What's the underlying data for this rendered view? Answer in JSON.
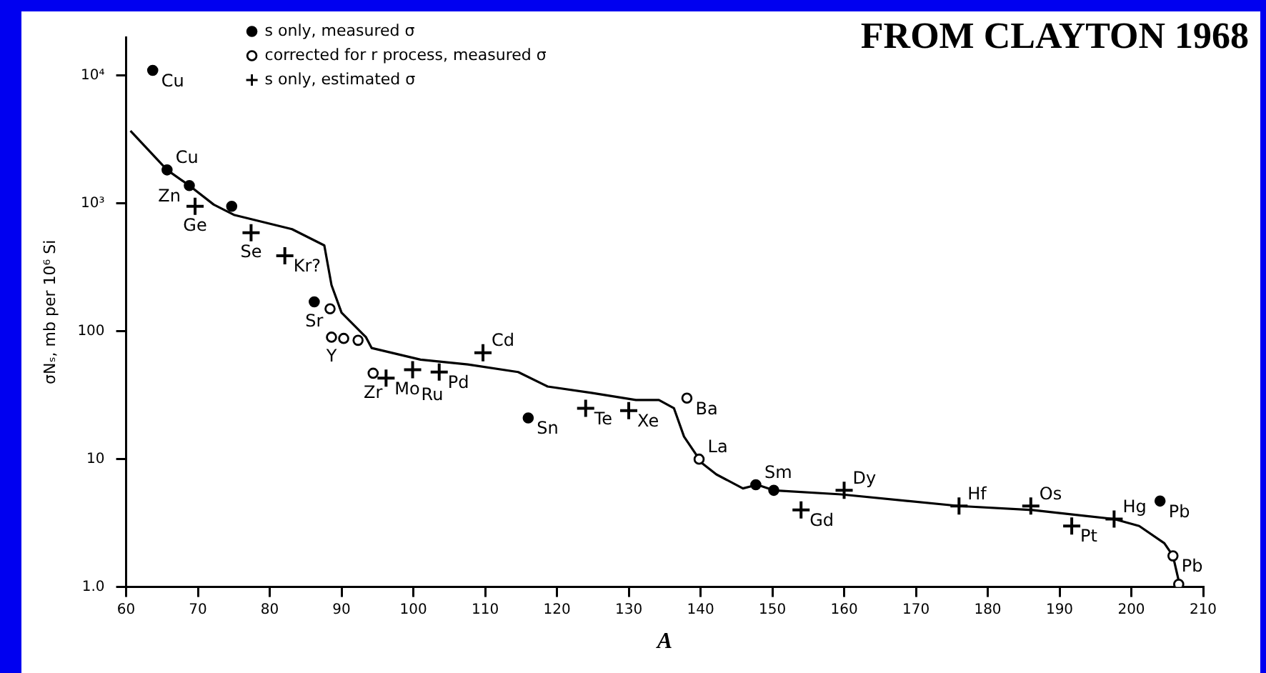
{
  "chart_data": {
    "type": "scatter",
    "title": "FROM CLAYTON 1968",
    "xlabel": "A",
    "ylabel": "σNₛ, mb per 10⁶ Si",
    "log": "y",
    "xlim": [
      60,
      210
    ],
    "ylim": [
      1,
      20000
    ],
    "xticks": [
      60,
      70,
      80,
      90,
      100,
      110,
      120,
      130,
      140,
      150,
      160,
      170,
      180,
      190,
      200,
      210
    ],
    "yticks": [
      {
        "value": 1,
        "label": "1.0"
      },
      10,
      100,
      {
        "value": 1000,
        "label": "10³"
      },
      {
        "value": 10000,
        "label": "10⁴"
      }
    ],
    "grid": false,
    "legend": "top left",
    "series": [
      {
        "name": "s only, measured σ",
        "marker": "circle",
        "color": "#000000",
        "x": [
          63.7,
          65.7,
          68.8,
          74.7,
          86.2,
          116,
          147.7,
          150.2,
          204
        ],
        "values": [
          11000,
          1830,
          1380,
          950,
          170,
          21,
          6.3,
          5.7,
          4.7
        ]
      },
      {
        "name": "corrected for r process, measured σ",
        "marker": "circle",
        "color": "#000000",
        "x": [
          88.4,
          88.6,
          90.3,
          92.3,
          94.4,
          138.1,
          139.8,
          205.8,
          206.6
        ],
        "values": [
          150,
          90,
          88,
          85,
          47,
          30,
          10,
          1.75,
          1.05
        ]
      },
      {
        "name": "s only, estimated σ",
        "marker": "cross",
        "color": "#000000",
        "x": [
          69.6,
          77.4,
          82.1,
          96.2,
          99.9,
          103.6,
          109.7,
          124,
          130,
          154,
          160,
          176,
          186,
          191.7,
          197.6
        ],
        "values": [
          950,
          590,
          390,
          43,
          50,
          48,
          68,
          25,
          24,
          4.0,
          5.7,
          4.3,
          4.3,
          3.0,
          3.4
        ]
      },
      {
        "type": "line",
        "marker": "none",
        "color": "#000000",
        "x": [
          60.6,
          65.7,
          68.8,
          72.2,
          75,
          83.1,
          87.6,
          88.6,
          90,
          93.4,
          94.2,
          101,
          107.6,
          114.6,
          118.7,
          124.8,
          131,
          134.2,
          136.3,
          137.7,
          140.2,
          142.2,
          145.9,
          147.9,
          150.2,
          159.6,
          176,
          186.2,
          197.6,
          201.1,
          204.6,
          205.8,
          206.8
        ],
        "values": [
          3700,
          1830,
          1380,
          980,
          815,
          630,
          470,
          230,
          140,
          90,
          74,
          60,
          55,
          48,
          37,
          33,
          29,
          29,
          25,
          15,
          9.3,
          7.6,
          5.9,
          6.3,
          5.7,
          5.3,
          4.3,
          4.0,
          3.4,
          3.0,
          2.2,
          1.75,
          1.0
        ]
      }
    ],
    "annotations": [
      {
        "text": "Cu",
        "x": 63.7,
        "y": 11000
      },
      {
        "text": "Cu",
        "x": 65.7,
        "y": 1830
      },
      {
        "text": "Zn",
        "x": 68.8,
        "y": 1380
      },
      {
        "text": "Ge",
        "x": 69.6,
        "y": 950
      },
      {
        "text": "Se",
        "x": 77.4,
        "y": 590
      },
      {
        "text": "Kr?",
        "x": 82.1,
        "y": 390
      },
      {
        "text": "Sr",
        "x": 86.2,
        "y": 170
      },
      {
        "text": "Y",
        "x": 88.6,
        "y": 90
      },
      {
        "text": "Zr",
        "x": 94.4,
        "y": 47
      },
      {
        "text": "Mo",
        "x": 96.2,
        "y": 43
      },
      {
        "text": "Ru",
        "x": 99.9,
        "y": 50
      },
      {
        "text": "Pd",
        "x": 103.6,
        "y": 48
      },
      {
        "text": "Cd",
        "x": 109.7,
        "y": 68
      },
      {
        "text": "Sn",
        "x": 116,
        "y": 21
      },
      {
        "text": "Te",
        "x": 124,
        "y": 25
      },
      {
        "text": "Xe",
        "x": 130,
        "y": 24
      },
      {
        "text": "Ba",
        "x": 138.1,
        "y": 30
      },
      {
        "text": "La",
        "x": 139.8,
        "y": 10
      },
      {
        "text": "Sm",
        "x": 147.7,
        "y": 6.3
      },
      {
        "text": "Gd",
        "x": 154,
        "y": 4.0
      },
      {
        "text": "Dy",
        "x": 160,
        "y": 5.7
      },
      {
        "text": "Hf",
        "x": 176,
        "y": 4.3
      },
      {
        "text": "Os",
        "x": 186,
        "y": 4.3
      },
      {
        "text": "Pt",
        "x": 191.7,
        "y": 3.0
      },
      {
        "text": "Hg",
        "x": 197.6,
        "y": 3.4
      },
      {
        "text": "Pb",
        "x": 204,
        "y": 4.7
      },
      {
        "text": "Pb",
        "x": 205.8,
        "y": 1.75
      }
    ]
  }
}
